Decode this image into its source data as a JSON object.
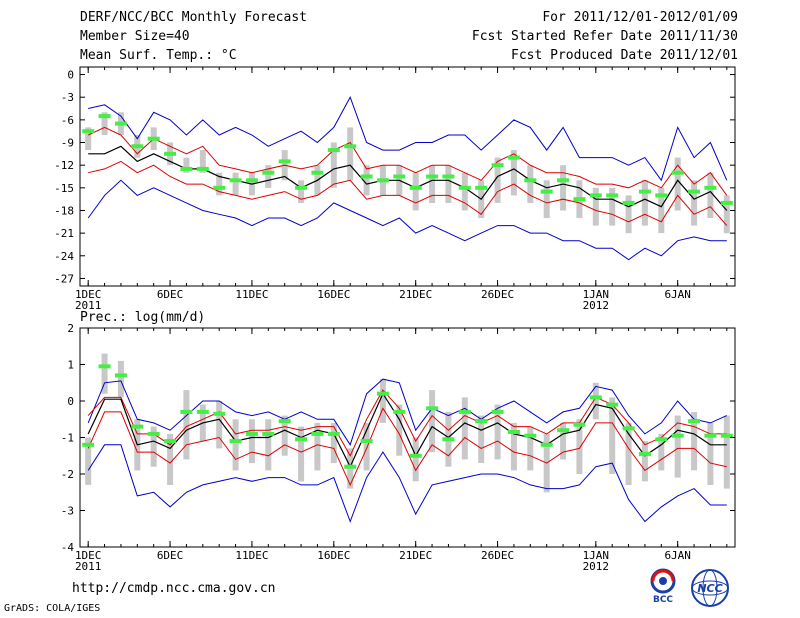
{
  "header": {
    "title": "DERF/NCC/BCC Monthly Forecast",
    "member_size": "Member Size=40",
    "variable": "Mean Surf. Temp.: °C",
    "period": "For 2011/12/01-2012/01/09",
    "started": "Fcst Started Refer Date 2011/11/30",
    "produced": "Fcst Produced Date 2011/12/01"
  },
  "footer": {
    "url": "http://cmdp.ncc.cma.gov.cn",
    "credit": "GrADS: COLA/IGES"
  },
  "logos": {
    "bcc_text": "BCC",
    "ncc_text": "NCC"
  },
  "colors": {
    "envelope": "#0000cc",
    "spread": "#dd0000",
    "mean": "#000000",
    "observed": "#44ee44",
    "box": "#c8c8c8"
  },
  "x_ticks": [
    {
      "day": 1,
      "label": "1DEC",
      "sub": "2011"
    },
    {
      "day": 6,
      "label": "6DEC",
      "sub": ""
    },
    {
      "day": 11,
      "label": "11DEC",
      "sub": ""
    },
    {
      "day": 16,
      "label": "16DEC",
      "sub": ""
    },
    {
      "day": 21,
      "label": "21DEC",
      "sub": ""
    },
    {
      "day": 26,
      "label": "26DEC",
      "sub": ""
    },
    {
      "day": 32,
      "label": "1JAN",
      "sub": "2012"
    },
    {
      "day": 37,
      "label": "6JAN",
      "sub": ""
    }
  ],
  "chart_data": [
    {
      "type": "line",
      "title": "Mean Surf. Temp.: °C",
      "xlabel": "",
      "ylabel": "",
      "x": [
        1,
        2,
        3,
        4,
        5,
        6,
        7,
        8,
        9,
        10,
        11,
        12,
        13,
        14,
        15,
        16,
        17,
        18,
        19,
        20,
        21,
        22,
        23,
        24,
        25,
        26,
        27,
        28,
        29,
        30,
        31,
        32,
        33,
        34,
        35,
        36,
        37,
        38,
        39,
        40
      ],
      "xlim": [
        0.5,
        40.5
      ],
      "ylim": [
        -28,
        1
      ],
      "yticks": [
        0,
        -3,
        -6,
        -9,
        -12,
        -15,
        -18,
        -21,
        -24,
        -27
      ],
      "series": [
        {
          "name": "max",
          "values": [
            -4.5,
            -4,
            -5.5,
            -8.5,
            -5,
            -6,
            -8,
            -6,
            -8,
            -7,
            -8,
            -9.5,
            -8.5,
            -7.5,
            -9,
            -7,
            -3,
            -9,
            -10,
            -10,
            -9,
            -9,
            -8,
            -8,
            -10,
            -8,
            -6,
            -7,
            -10,
            -7,
            -11,
            -11,
            -11,
            -12,
            -11,
            -14,
            -7,
            -11,
            -9,
            -14
          ],
          "style": "envelope"
        },
        {
          "name": "min",
          "values": [
            -19,
            -16,
            -14,
            -16,
            -15,
            -16,
            -17,
            -18,
            -18.5,
            -19,
            -20,
            -19,
            -19,
            -20,
            -19,
            -17,
            -18,
            -19,
            -20,
            -19,
            -21,
            -20,
            -21,
            -22,
            -21,
            -20,
            -20,
            -21,
            -21,
            -22,
            -22,
            -23,
            -23,
            -24.5,
            -23,
            -24,
            -22,
            -21.5,
            -22,
            -22
          ],
          "style": "envelope"
        },
        {
          "name": "upper",
          "values": [
            -8,
            -7,
            -8,
            -10.5,
            -8.5,
            -9.5,
            -10.5,
            -9.5,
            -12,
            -12.5,
            -13,
            -12.5,
            -12,
            -12.5,
            -12,
            -10,
            -9,
            -12.5,
            -12,
            -12,
            -13,
            -12,
            -12,
            -13,
            -14,
            -11.5,
            -10.5,
            -12,
            -13,
            -13,
            -13.5,
            -14.5,
            -14.5,
            -15,
            -14,
            -15,
            -12,
            -14.5,
            -13,
            -16
          ],
          "style": "spread"
        },
        {
          "name": "mean",
          "values": [
            -10.5,
            -10.5,
            -9.5,
            -11.5,
            -10.5,
            -11.5,
            -12.5,
            -12.5,
            -13.5,
            -14,
            -14.5,
            -14,
            -13.5,
            -15,
            -14,
            -12.5,
            -12,
            -14.5,
            -14,
            -14,
            -15,
            -14,
            -14,
            -15,
            -16.5,
            -13.5,
            -12.5,
            -14,
            -15,
            -14.5,
            -15,
            -16.5,
            -16.5,
            -17.5,
            -16.5,
            -17.5,
            -14,
            -16.5,
            -15.5,
            -18
          ],
          "style": "mean"
        },
        {
          "name": "lower",
          "values": [
            -13,
            -12.5,
            -11.5,
            -13,
            -12,
            -13.5,
            -14.5,
            -14.5,
            -15.5,
            -16,
            -16.5,
            -16,
            -15.5,
            -16.5,
            -16,
            -14.5,
            -14,
            -16.5,
            -16,
            -16,
            -17,
            -16,
            -16,
            -17,
            -18.5,
            -15.5,
            -14.5,
            -16,
            -17,
            -16.5,
            -17,
            -18,
            -18.5,
            -19.5,
            -18.5,
            -19.5,
            -16,
            -18.5,
            -17.5,
            -20
          ],
          "style": "spread"
        },
        {
          "name": "observed",
          "values": [
            -7.5,
            -5.5,
            -6.5,
            -9.5,
            -8.5,
            -10.5,
            -12.5,
            -12.5,
            -15,
            -14,
            -14,
            -13,
            -11.5,
            -15,
            -13,
            -10,
            -9.5,
            -13.5,
            -14,
            -13.5,
            -15,
            -13.5,
            -13.5,
            -15,
            -15,
            -12,
            -11,
            -14,
            -15.5,
            -14,
            -16.5,
            -16,
            -16,
            -17,
            -15.5,
            -16,
            -13,
            -15.5,
            -15,
            -17
          ],
          "style": "observed"
        }
      ],
      "boxes": [
        [
          -10,
          -7
        ],
        [
          -8,
          -5
        ],
        [
          -8,
          -5
        ],
        [
          -11,
          -8
        ],
        [
          -10,
          -7
        ],
        [
          -12,
          -9
        ],
        [
          -13,
          -11
        ],
        [
          -13,
          -10
        ],
        [
          -16,
          -13
        ],
        [
          -16,
          -13
        ],
        [
          -16,
          -13
        ],
        [
          -15,
          -12
        ],
        [
          -14,
          -10
        ],
        [
          -17,
          -14
        ],
        [
          -16,
          -12
        ],
        [
          -15,
          -9
        ],
        [
          -14,
          -7
        ],
        [
          -16,
          -12
        ],
        [
          -16,
          -12
        ],
        [
          -16,
          -12
        ],
        [
          -18,
          -13
        ],
        [
          -17,
          -12
        ],
        [
          -17,
          -12
        ],
        [
          -18,
          -13
        ],
        [
          -19,
          -14
        ],
        [
          -17,
          -11
        ],
        [
          -16,
          -10
        ],
        [
          -17,
          -12
        ],
        [
          -19,
          -14
        ],
        [
          -18,
          -12
        ],
        [
          -19,
          -14
        ],
        [
          -20,
          -15
        ],
        [
          -20,
          -15
        ],
        [
          -21,
          -16
        ],
        [
          -20,
          -14
        ],
        [
          -21,
          -15
        ],
        [
          -18,
          -11
        ],
        [
          -20,
          -14
        ],
        [
          -19,
          -13
        ],
        [
          -21,
          -16
        ]
      ]
    },
    {
      "type": "line",
      "title": "Prec.: log(mm/d)",
      "xlabel": "",
      "ylabel": "",
      "x": [
        1,
        2,
        3,
        4,
        5,
        6,
        7,
        8,
        9,
        10,
        11,
        12,
        13,
        14,
        15,
        16,
        17,
        18,
        19,
        20,
        21,
        22,
        23,
        24,
        25,
        26,
        27,
        28,
        29,
        30,
        31,
        32,
        33,
        34,
        35,
        36,
        37,
        38,
        39,
        40
      ],
      "xlim": [
        0.5,
        40.5
      ],
      "ylim": [
        -4,
        2
      ],
      "yticks": [
        2,
        1,
        0,
        -1,
        -2,
        -3,
        -4
      ],
      "series": [
        {
          "name": "max",
          "values": [
            -0.6,
            0.5,
            0.55,
            -0.5,
            -0.6,
            -0.8,
            -0.4,
            0,
            0,
            -0.3,
            -0.4,
            -0.3,
            -0.5,
            -0.3,
            -0.5,
            -0.5,
            -1.2,
            0.2,
            0.6,
            0.5,
            -0.8,
            -0.2,
            -0.4,
            -0.2,
            -0.5,
            -0.2,
            0,
            -0.3,
            -0.6,
            -0.3,
            -0.2,
            0.4,
            0.3,
            -0.4,
            -0.9,
            -0.6,
            0,
            -0.5,
            -0.6,
            -0.4
          ],
          "style": "envelope"
        },
        {
          "name": "min",
          "values": [
            -1.9,
            -1.2,
            -1.2,
            -2.6,
            -2.5,
            -2.9,
            -2.5,
            -2.3,
            -2.2,
            -2.1,
            -2.2,
            -2.1,
            -2.1,
            -2.3,
            -2.3,
            -2.1,
            -3.3,
            -2.1,
            -1.4,
            -2.1,
            -3.1,
            -2.3,
            -2.2,
            -2.1,
            -2.0,
            -2.0,
            -2.1,
            -2.3,
            -2.4,
            -2.4,
            -2.3,
            -1.8,
            -1.7,
            -2.7,
            -3.3,
            -2.9,
            -2.6,
            -2.4,
            -2.85,
            -2.85
          ],
          "style": "envelope"
        },
        {
          "name": "upper",
          "values": [
            -0.4,
            0.1,
            0.1,
            -0.9,
            -0.9,
            -1.2,
            -0.7,
            -0.5,
            -0.3,
            -0.9,
            -0.8,
            -0.8,
            -0.7,
            -0.8,
            -0.7,
            -0.7,
            -1.5,
            -0.5,
            0.3,
            -0.2,
            -1.1,
            -0.4,
            -0.8,
            -0.4,
            -0.6,
            -0.4,
            -0.7,
            -0.7,
            -0.9,
            -0.6,
            -0.6,
            0.1,
            -0.1,
            -0.6,
            -1.2,
            -1.0,
            -0.6,
            -0.7,
            -0.9,
            -0.9
          ],
          "style": "spread"
        },
        {
          "name": "mean",
          "values": [
            -0.9,
            0.05,
            0.05,
            -1.2,
            -1.1,
            -1.3,
            -0.8,
            -0.6,
            -0.5,
            -1.1,
            -1.0,
            -1.0,
            -0.8,
            -1.0,
            -0.8,
            -0.9,
            -1.8,
            -0.8,
            0.2,
            -0.5,
            -1.5,
            -0.7,
            -1.0,
            -0.6,
            -0.8,
            -0.6,
            -0.9,
            -1.0,
            -1.2,
            -0.9,
            -0.8,
            -0.1,
            -0.2,
            -0.9,
            -1.5,
            -1.2,
            -0.8,
            -0.9,
            -1.2,
            -1.2
          ],
          "style": "mean"
        },
        {
          "name": "lower",
          "values": [
            -1.3,
            -0.3,
            -0.3,
            -1.4,
            -1.4,
            -1.7,
            -1.2,
            -1.1,
            -1.0,
            -1.6,
            -1.4,
            -1.5,
            -1.2,
            -1.4,
            -1.2,
            -1.3,
            -2.3,
            -1.3,
            -0.2,
            -0.9,
            -1.9,
            -1.2,
            -1.5,
            -1.0,
            -1.3,
            -1.1,
            -1.4,
            -1.5,
            -1.7,
            -1.4,
            -1.3,
            -0.6,
            -0.6,
            -1.3,
            -1.9,
            -1.6,
            -1.3,
            -1.3,
            -1.7,
            -1.8
          ],
          "style": "spread"
        },
        {
          "name": "observed",
          "values": [
            -1.2,
            0.95,
            0.7,
            -0.7,
            -0.9,
            -1.1,
            -0.3,
            -0.3,
            -0.35,
            -1.1,
            -0.9,
            -0.9,
            -0.55,
            -1.05,
            -0.9,
            -0.9,
            -1.8,
            -1.1,
            0.2,
            -0.3,
            -1.5,
            -0.2,
            -1.05,
            -0.3,
            -0.55,
            -0.3,
            -0.85,
            -0.95,
            -1.2,
            -0.8,
            -0.65,
            0.1,
            -0.1,
            -0.75,
            -1.45,
            -1.05,
            -0.95,
            -0.55,
            -0.95,
            -0.95
          ],
          "style": "observed"
        }
      ],
      "boxes": [
        [
          -2.3,
          -1.0
        ],
        [
          0.2,
          1.3
        ],
        [
          0.1,
          1.1
        ],
        [
          -1.9,
          -0.5
        ],
        [
          -1.8,
          -0.7
        ],
        [
          -2.3,
          -0.9
        ],
        [
          -1.6,
          0.3
        ],
        [
          -1.1,
          -0.1
        ],
        [
          -1.3,
          0
        ],
        [
          -1.9,
          -0.5
        ],
        [
          -1.7,
          -0.5
        ],
        [
          -1.9,
          -0.5
        ],
        [
          -1.5,
          -0.4
        ],
        [
          -2.2,
          -0.7
        ],
        [
          -1.9,
          -0.6
        ],
        [
          -1.7,
          -0.6
        ],
        [
          -2.4,
          -1.3
        ],
        [
          -1.9,
          -0.6
        ],
        [
          -0.6,
          0.6
        ],
        [
          -1.5,
          -0.1
        ],
        [
          -2.2,
          -1.0
        ],
        [
          -1.4,
          0.3
        ],
        [
          -1.8,
          -0.3
        ],
        [
          -1.6,
          0.1
        ],
        [
          -1.7,
          -0.4
        ],
        [
          -1.6,
          -0.1
        ],
        [
          -1.9,
          -0.6
        ],
        [
          -1.9,
          -0.7
        ],
        [
          -2.5,
          -0.9
        ],
        [
          -1.6,
          -0.6
        ],
        [
          -2.0,
          -0.5
        ],
        [
          -0.5,
          0.5
        ],
        [
          -2.0,
          0.1
        ],
        [
          -2.3,
          -0.6
        ],
        [
          -2.2,
          -1.1
        ],
        [
          -1.9,
          -0.9
        ],
        [
          -2.1,
          -0.4
        ],
        [
          -1.9,
          -0.3
        ],
        [
          -2.3,
          -0.6
        ],
        [
          -2.4,
          -0.4
        ]
      ]
    }
  ]
}
